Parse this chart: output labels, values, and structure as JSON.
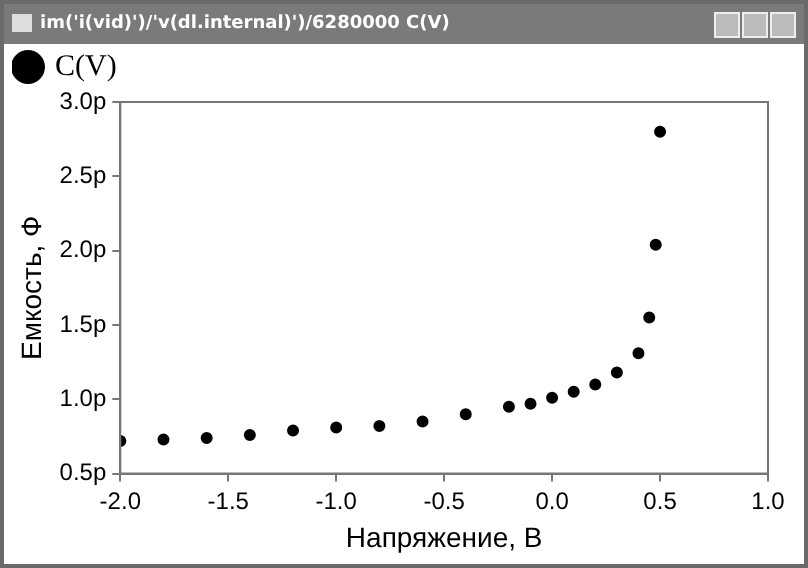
{
  "chart_data": {
    "type": "scatter",
    "title": "im('i(vid)')/'v(dl.internal)')/6280000 C(V)",
    "xlabel": "Напряжение, В",
    "ylabel": "Емкость, Ф",
    "legend": "top left",
    "marker": "circle",
    "grid": false,
    "xlim": [
      -2.0,
      1.0
    ],
    "xticks": [
      {
        "value": -2,
        "label": "-2.0"
      },
      {
        "value": -1.5,
        "label": "-1.5"
      },
      {
        "value": -1,
        "label": "-1.0"
      },
      {
        "value": -0.5,
        "label": "-0.5"
      },
      {
        "value": 0,
        "label": "0.0"
      },
      {
        "value": 0.5,
        "label": "0.5"
      },
      {
        "value": 1,
        "label": "1.0"
      }
    ],
    "ylim": [
      0.5,
      3.0
    ],
    "yticks": [
      {
        "value": 0.5,
        "label": "0.5p"
      },
      {
        "value": 1,
        "label": "1.0p"
      },
      {
        "value": 1.5,
        "label": "1.5p"
      },
      {
        "value": 2,
        "label": "2.0p"
      },
      {
        "value": 2.5,
        "label": "2.5p"
      },
      {
        "value": 3,
        "label": "3.0p"
      }
    ],
    "series": [
      {
        "name": "C(V)",
        "color": "#000000",
        "x": [
          -2.0,
          -1.8,
          -1.6,
          -1.4,
          -1.2,
          -1.0,
          -0.8,
          -0.6,
          -0.4,
          -0.2,
          -0.1,
          0.0,
          0.1,
          0.2,
          0.3,
          0.4,
          0.45,
          0.48,
          0.5
        ],
        "values": [
          0.72,
          0.73,
          0.74,
          0.76,
          0.79,
          0.81,
          0.82,
          0.85,
          0.9,
          0.95,
          0.97,
          1.01,
          1.05,
          1.1,
          1.18,
          1.31,
          1.55,
          2.04,
          2.8
        ]
      }
    ]
  }
}
